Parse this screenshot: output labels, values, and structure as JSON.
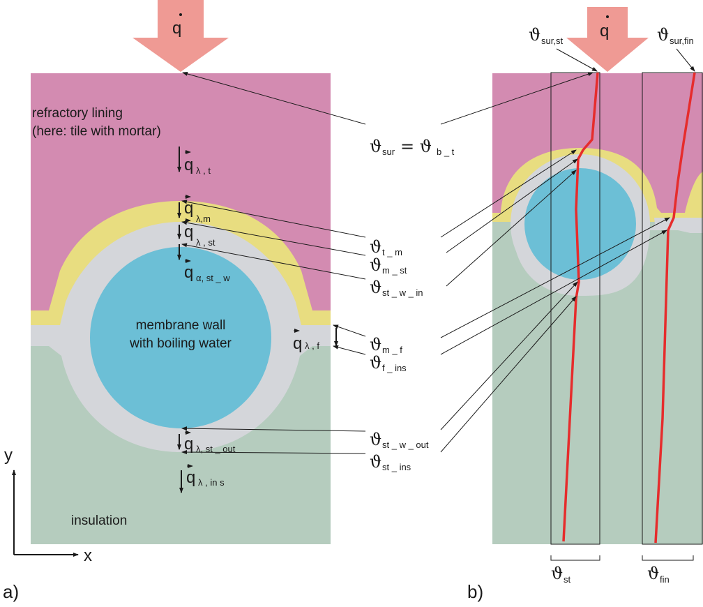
{
  "colors": {
    "lining": "#d38bb1",
    "mortar": "#e8dd80",
    "steel": "#d4d6da",
    "water": "#6cbfd6",
    "insulation": "#b5ccbe",
    "heat_arrow": "#ef9a94",
    "temperature_profile": "#e62c2c"
  },
  "panel_a": {
    "tag": "a)",
    "heat_flux": "q",
    "lining_label_1": "refractory lining",
    "lining_label_2": "(here: tile with mortar)",
    "water_label_1": "membrane wall",
    "water_label_2": "with boiling water",
    "insulation_label": "insulation",
    "axis_y": "y",
    "axis_x": "x",
    "fluxes": [
      {
        "main": "q",
        "sub": "λ , t"
      },
      {
        "main": "q",
        "sub": "λ,m"
      },
      {
        "main": "q",
        "sub": "λ , st"
      },
      {
        "main": "q",
        "sub": "α, st _ w"
      },
      {
        "main": "q",
        "sub": "λ , f"
      },
      {
        "main": "q",
        "sub": "λ, st _ out"
      },
      {
        "main": "q",
        "sub": "λ , in s"
      }
    ]
  },
  "temperatures": [
    {
      "sym": "ϑ",
      "sub": "sur",
      "rest": " = ϑ",
      "sub2": "b _ t"
    },
    {
      "sym": "ϑ",
      "sub": "t _ m"
    },
    {
      "sym": "ϑ",
      "sub": "m _ st"
    },
    {
      "sym": "ϑ",
      "sub": "st _ w _ in"
    },
    {
      "sym": "ϑ",
      "sub": "m _ f"
    },
    {
      "sym": "ϑ",
      "sub": "f _ ins"
    },
    {
      "sym": "ϑ",
      "sub": "st _ w _ out"
    },
    {
      "sym": "ϑ",
      "sub": "st _ ins"
    }
  ],
  "panel_b": {
    "tag": "b)",
    "heat_flux": "q",
    "top_labels": [
      {
        "sym": "ϑ",
        "sub": "sur,st"
      },
      {
        "sym": "ϑ",
        "sub": "sur,fin"
      }
    ],
    "bottom_labels": [
      {
        "sym": "ϑ",
        "sub": "st"
      },
      {
        "sym": "ϑ",
        "sub": "fin"
      }
    ]
  }
}
